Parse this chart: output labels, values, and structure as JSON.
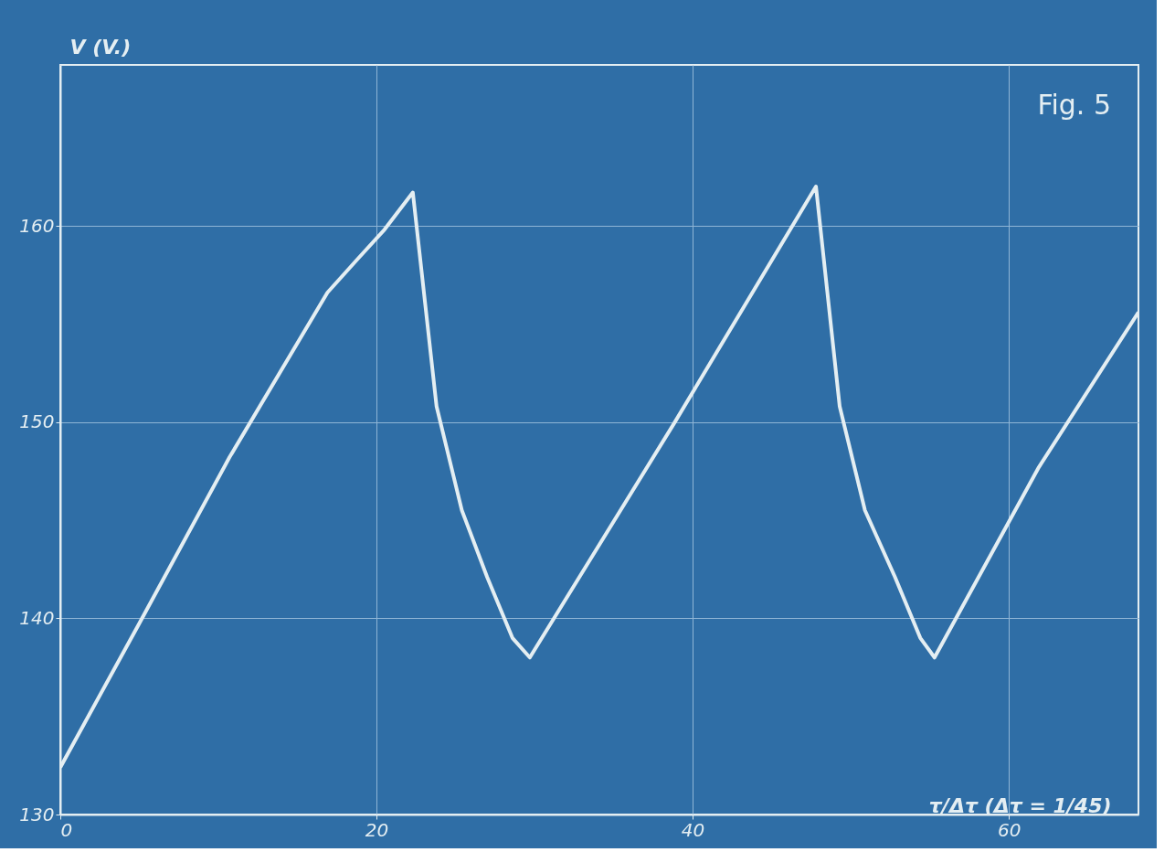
{
  "chart_data": {
    "type": "line",
    "xlabel": "τ/Δτ   (Δτ = 1/45)",
    "ylabel": "V (V.)",
    "annotations": [
      "Fig. 5"
    ],
    "x": [
      0,
      4.9,
      10.7,
      16.9,
      18.8,
      20.5,
      22.3,
      23.8,
      25.4,
      27.0,
      28.6,
      29.7,
      38.8,
      47.8,
      49.3,
      50.9,
      52.8,
      54.4,
      55.3,
      61.9,
      68.2
    ],
    "series": [
      {
        "color": "#e4eef2",
        "values": [
          132.4,
          139.6,
          148.2,
          156.6,
          158.3,
          159.8,
          161.7,
          150.8,
          145.5,
          142.1,
          139.0,
          138.0,
          149.9,
          162.0,
          150.8,
          145.5,
          142.1,
          139.0,
          138.0,
          147.7,
          155.6
        ]
      }
    ],
    "xlim": [
      0,
      68.2
    ],
    "ylim": [
      130,
      168.2
    ],
    "xticks": [
      0,
      20,
      40,
      60
    ],
    "yticks": [
      130,
      140,
      150,
      160
    ],
    "grid": true,
    "marker": "none",
    "line_style": "solid",
    "legend": false
  }
}
